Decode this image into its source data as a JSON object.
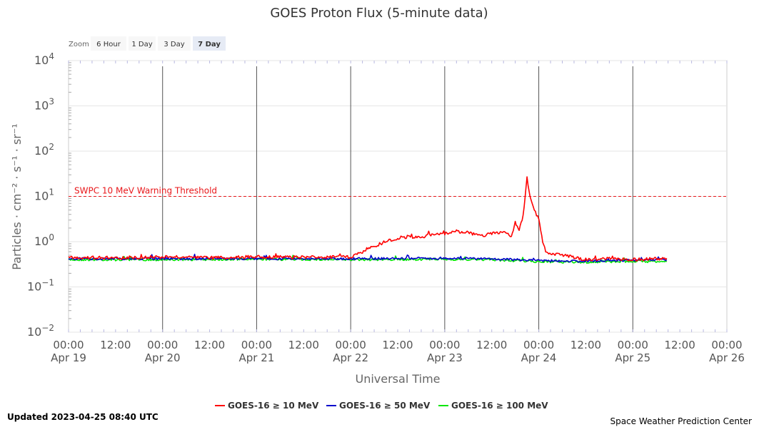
{
  "chart_data": {
    "type": "line",
    "title": "GOES Proton Flux (5-minute data)",
    "xlabel": "Universal Time",
    "ylabel": "Particles · cm⁻² · s⁻¹ · sr⁻¹",
    "yscale": "log",
    "ylim": [
      0.01,
      10000
    ],
    "y_ticks": [
      {
        "value": 10000,
        "base": "10",
        "exp": "4"
      },
      {
        "value": 1000,
        "base": "10",
        "exp": "3"
      },
      {
        "value": 100,
        "base": "10",
        "exp": "2"
      },
      {
        "value": 10,
        "base": "10",
        "exp": "1"
      },
      {
        "value": 1,
        "base": "10",
        "exp": "0"
      },
      {
        "value": 0.1,
        "base": "10",
        "exp": "−1"
      },
      {
        "value": 0.01,
        "base": "10",
        "exp": "−2"
      }
    ],
    "x_range": [
      "2023-04-19 00:00",
      "2023-04-26 00:00"
    ],
    "x_ticks": [
      {
        "time": "2023-04-19 00:00",
        "line1": "00:00",
        "line2": "Apr 19"
      },
      {
        "time": "2023-04-19 12:00",
        "line1": "12:00",
        "line2": ""
      },
      {
        "time": "2023-04-20 00:00",
        "line1": "00:00",
        "line2": "Apr 20"
      },
      {
        "time": "2023-04-20 12:00",
        "line1": "12:00",
        "line2": ""
      },
      {
        "time": "2023-04-21 00:00",
        "line1": "00:00",
        "line2": "Apr 21"
      },
      {
        "time": "2023-04-21 12:00",
        "line1": "12:00",
        "line2": ""
      },
      {
        "time": "2023-04-22 00:00",
        "line1": "00:00",
        "line2": "Apr 22"
      },
      {
        "time": "2023-04-22 12:00",
        "line1": "12:00",
        "line2": ""
      },
      {
        "time": "2023-04-23 00:00",
        "line1": "00:00",
        "line2": "Apr 23"
      },
      {
        "time": "2023-04-23 12:00",
        "line1": "12:00",
        "line2": ""
      },
      {
        "time": "2023-04-24 00:00",
        "line1": "00:00",
        "line2": "Apr 24"
      },
      {
        "time": "2023-04-24 12:00",
        "line1": "12:00",
        "line2": ""
      },
      {
        "time": "2023-04-25 00:00",
        "line1": "00:00",
        "line2": "Apr 25"
      },
      {
        "time": "2023-04-25 12:00",
        "line1": "12:00",
        "line2": ""
      },
      {
        "time": "2023-04-26 00:00",
        "line1": "00:00",
        "line2": "Apr 26"
      }
    ],
    "threshold": {
      "value": 10,
      "label": "SWPC 10 MeV Warning Threshold",
      "color": "#e8181b"
    },
    "series": [
      {
        "name": "GOES-16 ≥ 10 MeV",
        "color": "#ff0000",
        "points": [
          [
            "2023-04-19 00:00",
            0.45
          ],
          [
            "2023-04-19 12:00",
            0.44
          ],
          [
            "2023-04-20 00:00",
            0.46
          ],
          [
            "2023-04-20 12:00",
            0.44
          ],
          [
            "2023-04-21 00:00",
            0.46
          ],
          [
            "2023-04-21 12:00",
            0.45
          ],
          [
            "2023-04-22 00:00",
            0.46
          ],
          [
            "2023-04-22 03:00",
            0.6
          ],
          [
            "2023-04-22 06:00",
            0.8
          ],
          [
            "2023-04-22 09:00",
            1.0
          ],
          [
            "2023-04-22 12:00",
            1.2
          ],
          [
            "2023-04-22 15:00",
            1.3
          ],
          [
            "2023-04-22 18:00",
            1.2
          ],
          [
            "2023-04-22 21:00",
            1.5
          ],
          [
            "2023-04-23 00:00",
            1.5
          ],
          [
            "2023-04-23 03:00",
            1.7
          ],
          [
            "2023-04-23 06:00",
            1.6
          ],
          [
            "2023-04-23 09:00",
            1.3
          ],
          [
            "2023-04-23 12:00",
            1.5
          ],
          [
            "2023-04-23 15:00",
            1.7
          ],
          [
            "2023-04-23 17:00",
            1.3
          ],
          [
            "2023-04-23 18:00",
            2.5
          ],
          [
            "2023-04-23 19:00",
            1.8
          ],
          [
            "2023-04-23 20:00",
            3.5
          ],
          [
            "2023-04-23 21:00",
            25.0
          ],
          [
            "2023-04-23 22:00",
            8.0
          ],
          [
            "2023-04-24 00:00",
            3.0
          ],
          [
            "2023-04-24 01:00",
            1.0
          ],
          [
            "2023-04-24 02:00",
            0.55
          ],
          [
            "2023-04-24 06:00",
            0.5
          ],
          [
            "2023-04-24 12:00",
            0.4
          ],
          [
            "2023-04-24 18:00",
            0.42
          ],
          [
            "2023-04-25 00:00",
            0.4
          ],
          [
            "2023-04-25 08:40",
            0.43
          ]
        ]
      },
      {
        "name": "GOES-16 ≥ 50 MeV",
        "color": "#0000cc",
        "points": [
          [
            "2023-04-19 00:00",
            0.42
          ],
          [
            "2023-04-20 00:00",
            0.42
          ],
          [
            "2023-04-21 00:00",
            0.42
          ],
          [
            "2023-04-22 00:00",
            0.42
          ],
          [
            "2023-04-23 00:00",
            0.43
          ],
          [
            "2023-04-23 12:00",
            0.42
          ],
          [
            "2023-04-24 00:00",
            0.38
          ],
          [
            "2023-04-24 12:00",
            0.37
          ],
          [
            "2023-04-25 00:00",
            0.39
          ],
          [
            "2023-04-25 08:40",
            0.4
          ]
        ]
      },
      {
        "name": "GOES-16 ≥ 100 MeV",
        "color": "#00e600",
        "points": [
          [
            "2023-04-19 00:00",
            0.4
          ],
          [
            "2023-04-20 00:00",
            0.4
          ],
          [
            "2023-04-21 00:00",
            0.41
          ],
          [
            "2023-04-22 00:00",
            0.4
          ],
          [
            "2023-04-23 00:00",
            0.41
          ],
          [
            "2023-04-23 12:00",
            0.4
          ],
          [
            "2023-04-24 00:00",
            0.36
          ],
          [
            "2023-04-24 12:00",
            0.35
          ],
          [
            "2023-04-25 00:00",
            0.37
          ],
          [
            "2023-04-25 08:40",
            0.36
          ]
        ]
      }
    ],
    "grid": true,
    "legend_position": "bottom-center"
  },
  "zoom": {
    "label": "Zoom",
    "buttons": [
      {
        "label": "6 Hour",
        "selected": false
      },
      {
        "label": "1 Day",
        "selected": false
      },
      {
        "label": "3 Day",
        "selected": false
      },
      {
        "label": "7 Day",
        "selected": true
      }
    ]
  },
  "footer": {
    "updated": "Updated 2023-04-25 08:40 UTC",
    "credit": "Space Weather Prediction Center"
  }
}
